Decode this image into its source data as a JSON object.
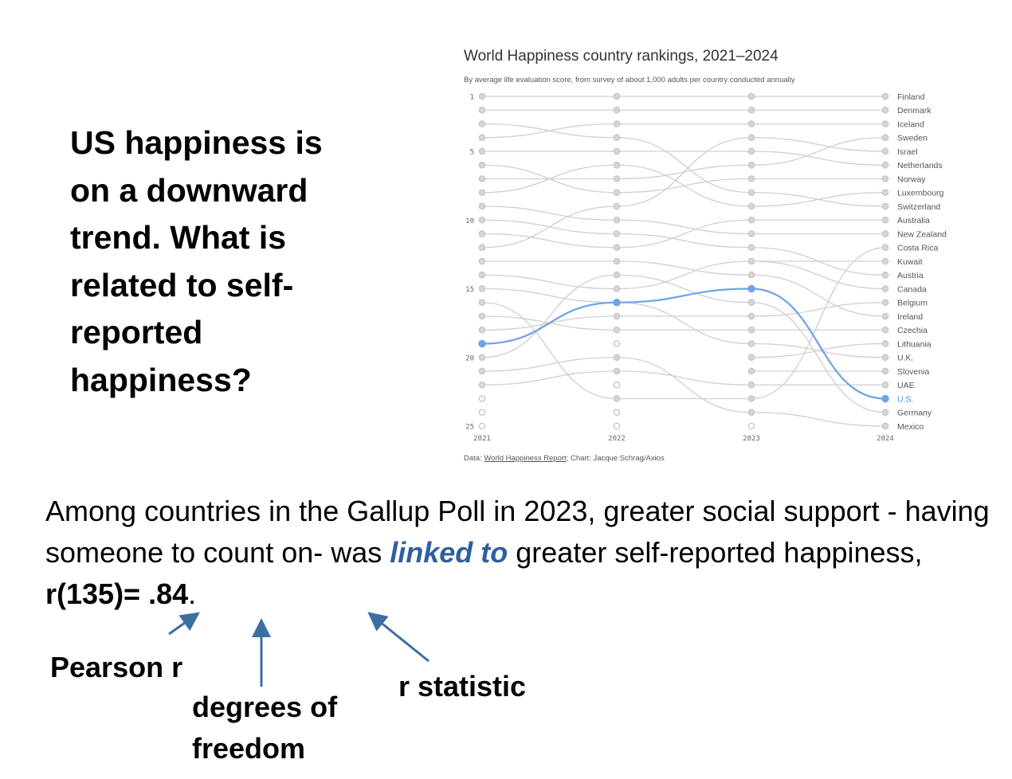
{
  "slide": {
    "headline": "US happiness is on a downward trend. What is related to self-reported happiness?",
    "body": {
      "before": "Among countries in the Gallup Poll in 2023, greater social support - having someone to count on- was ",
      "emphasis": "linked to",
      "after": " greater self-reported happiness,  ",
      "stat": "r(135)= .84",
      "end": "."
    },
    "labels": {
      "pearson": "Pearson r",
      "df": "degrees of freedom",
      "r_stat": "r statistic"
    }
  },
  "chart": {
    "title": "World Happiness country rankings, 2021–2024",
    "subtitle": "By average life evaluation score, from survey of about 1,000 adults per country conducted annually",
    "credit_prefix": "Data: ",
    "credit_link": "World Happiness Report",
    "credit_suffix": "; Chart: Jacque Schrag/Axios"
  },
  "chart_data": {
    "type": "line",
    "x": [
      "2021",
      "2022",
      "2023",
      "2024"
    ],
    "y_ticks": [
      "1",
      "5",
      "10",
      "15",
      "20",
      "25"
    ],
    "ylim": [
      1,
      25
    ],
    "y_inverted": true,
    "grid": false,
    "colors": {
      "highlight": "#6ea3e6",
      "line": "#cfcfcf",
      "dot": "#c2c2c2"
    },
    "highlight_series": "U.S.",
    "series": [
      {
        "name": "Finland",
        "values": [
          1,
          1,
          1,
          1
        ]
      },
      {
        "name": "Denmark",
        "values": [
          2,
          2,
          2,
          2
        ]
      },
      {
        "name": "Iceland",
        "values": [
          4,
          3,
          3,
          3
        ]
      },
      {
        "name": "Sweden",
        "values": [
          7,
          7,
          6,
          4
        ]
      },
      {
        "name": "Israel",
        "values": [
          12,
          9,
          4,
          5
        ]
      },
      {
        "name": "Netherlands",
        "values": [
          5,
          5,
          5,
          6
        ]
      },
      {
        "name": "Norway",
        "values": [
          6,
          8,
          7,
          7
        ]
      },
      {
        "name": "Luxembourg",
        "values": [
          8,
          6,
          9,
          8
        ]
      },
      {
        "name": "Switzerland",
        "values": [
          3,
          4,
          8,
          9
        ]
      },
      {
        "name": "Australia",
        "values": [
          11,
          12,
          10,
          10
        ]
      },
      {
        "name": "New Zealand",
        "values": [
          9,
          10,
          11,
          11
        ]
      },
      {
        "name": "Costa Rica",
        "values": [
          16,
          23,
          23,
          12
        ]
      },
      {
        "name": "Kuwait",
        "values": [
          null,
          null,
          13,
          13
        ]
      },
      {
        "name": "Austria",
        "values": [
          10,
          11,
          12,
          14
        ]
      },
      {
        "name": "Canada",
        "values": [
          14,
          15,
          13,
          15
        ]
      },
      {
        "name": "Belgium",
        "values": [
          18,
          17,
          17,
          16
        ]
      },
      {
        "name": "Ireland",
        "values": [
          13,
          13,
          14,
          17
        ]
      },
      {
        "name": "Czechia",
        "values": [
          17,
          18,
          18,
          18
        ]
      },
      {
        "name": "Lithuania",
        "values": [
          null,
          null,
          20,
          19
        ]
      },
      {
        "name": "U.K.",
        "values": [
          15,
          16,
          19,
          20
        ]
      },
      {
        "name": "Slovenia",
        "values": [
          null,
          null,
          21,
          21
        ]
      },
      {
        "name": "UAE",
        "values": [
          22,
          21,
          22,
          22
        ]
      },
      {
        "name": "U.S.",
        "values": [
          19,
          16,
          15,
          23
        ]
      },
      {
        "name": "Germany",
        "values": [
          20,
          14,
          16,
          24
        ]
      },
      {
        "name": "Mexico",
        "values": [
          21,
          20,
          24,
          25
        ]
      }
    ]
  }
}
